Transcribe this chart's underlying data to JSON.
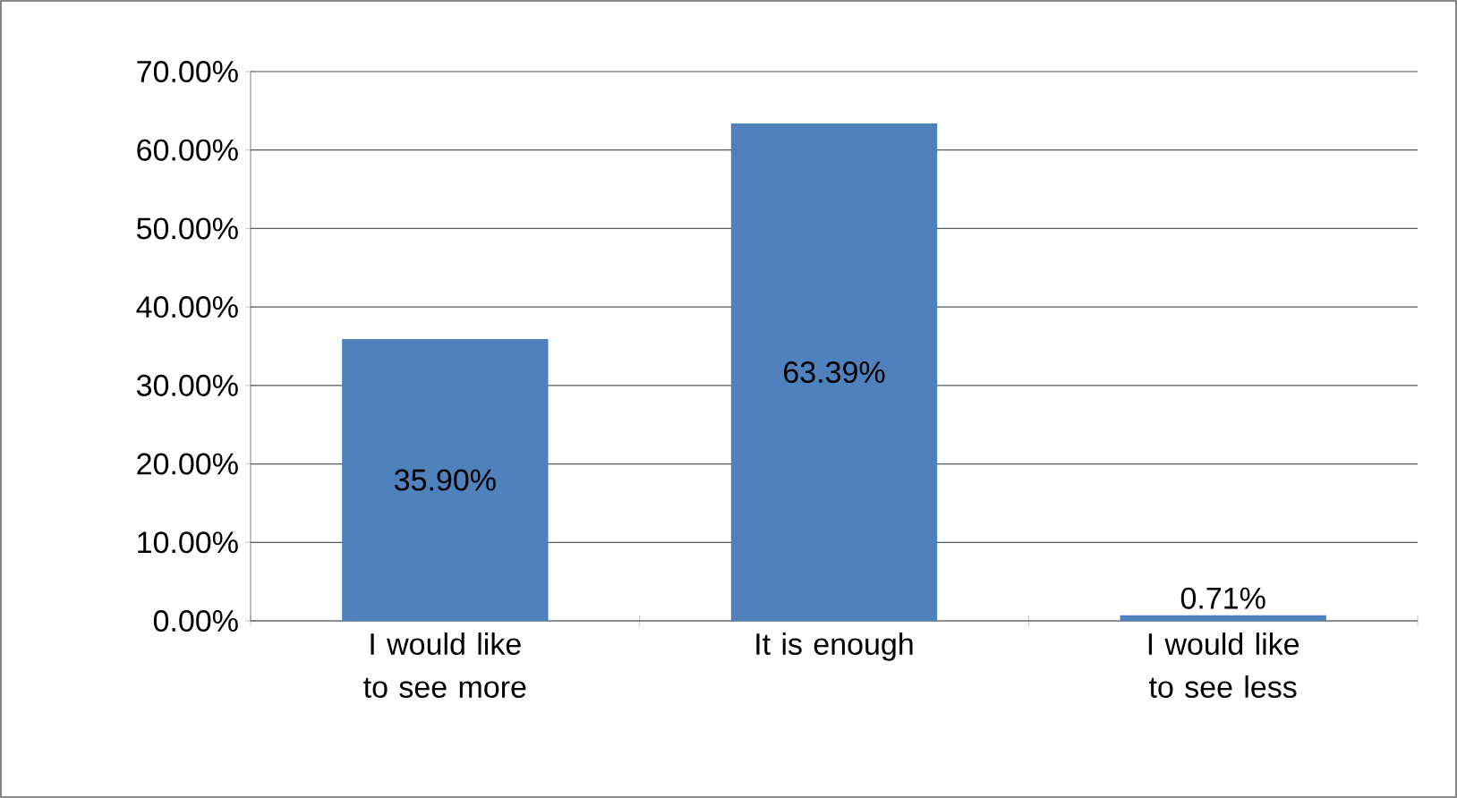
{
  "chart_data": {
    "type": "bar",
    "categories": [
      "I would like to see more",
      "It is enough",
      "I would like to see less"
    ],
    "values": [
      35.9,
      63.39,
      0.71
    ],
    "value_labels": [
      "35.90%",
      "63.39%",
      "0.71%"
    ],
    "color": "#4f81bd",
    "ylim": [
      0,
      70
    ],
    "yticks": [
      {
        "value": 0,
        "label": "0.00%"
      },
      {
        "value": 10,
        "label": "10.00%"
      },
      {
        "value": 20,
        "label": "20.00%"
      },
      {
        "value": 30,
        "label": "30.00%"
      },
      {
        "value": 40,
        "label": "40.00%"
      },
      {
        "value": 50,
        "label": "50.00%"
      },
      {
        "value": 60,
        "label": "60.00%"
      },
      {
        "value": 70,
        "label": "70.00%"
      }
    ],
    "grid": "y"
  }
}
